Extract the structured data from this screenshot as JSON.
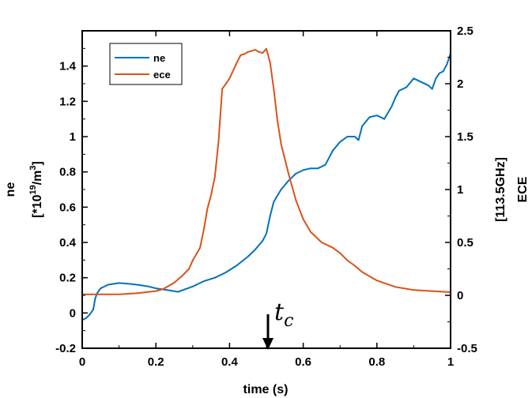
{
  "chart_data": {
    "type": "line",
    "xlabel": "time (s)",
    "ylabel_left": {
      "line1": "ne",
      "line2_prefix": "[*10",
      "line2_sup1": "19",
      "line2_mid": "/m",
      "line2_sup2": "3",
      "line2_suffix": "]"
    },
    "ylabel_right": {
      "line1": "[113.5GHz]",
      "line2": "ECE"
    },
    "xlim": [
      0,
      1
    ],
    "ylim_left": [
      -0.2,
      1.6
    ],
    "ylim_right": [
      -0.5,
      2.5
    ],
    "x_ticks": [
      "0",
      "0.2",
      "0.4",
      "0.6",
      "0.8",
      "1"
    ],
    "y_left_ticks": [
      "-0.2",
      "0",
      "0.2",
      "0.4",
      "0.6",
      "0.8",
      "1",
      "1.2",
      "1.4"
    ],
    "y_right_ticks": [
      "-0.5",
      "0",
      "0.5",
      "1",
      "1.5",
      "2",
      "2.5"
    ],
    "grid": false,
    "legend_position": "top-left",
    "annotation": {
      "text": "c",
      "prefix": "t",
      "x": 0.5
    },
    "series": [
      {
        "name": "ne",
        "axis": "left",
        "color": "#0072BD",
        "x": [
          0.0,
          0.01,
          0.02,
          0.03,
          0.035,
          0.04,
          0.05,
          0.07,
          0.1,
          0.13,
          0.15,
          0.18,
          0.2,
          0.23,
          0.26,
          0.3,
          0.33,
          0.36,
          0.39,
          0.42,
          0.45,
          0.47,
          0.49,
          0.5,
          0.51,
          0.52,
          0.54,
          0.56,
          0.58,
          0.6,
          0.62,
          0.64,
          0.66,
          0.68,
          0.7,
          0.72,
          0.74,
          0.75,
          0.76,
          0.78,
          0.8,
          0.81,
          0.82,
          0.84,
          0.85,
          0.86,
          0.88,
          0.9,
          0.92,
          0.94,
          0.95,
          0.96,
          0.97,
          0.98,
          0.99,
          1.0
        ],
        "values": [
          -0.04,
          -0.03,
          -0.01,
          0.02,
          0.08,
          0.11,
          0.14,
          0.16,
          0.17,
          0.165,
          0.16,
          0.15,
          0.14,
          0.13,
          0.12,
          0.15,
          0.18,
          0.2,
          0.23,
          0.27,
          0.32,
          0.36,
          0.41,
          0.45,
          0.55,
          0.63,
          0.7,
          0.75,
          0.79,
          0.81,
          0.82,
          0.82,
          0.84,
          0.92,
          0.97,
          1.0,
          1.0,
          0.98,
          1.06,
          1.11,
          1.12,
          1.11,
          1.1,
          1.17,
          1.22,
          1.26,
          1.28,
          1.33,
          1.31,
          1.29,
          1.27,
          1.33,
          1.36,
          1.37,
          1.41,
          1.47
        ]
      },
      {
        "name": "ece",
        "axis": "right",
        "color": "#D95319",
        "x": [
          0.0,
          0.05,
          0.1,
          0.15,
          0.2,
          0.22,
          0.25,
          0.27,
          0.29,
          0.3,
          0.32,
          0.33,
          0.34,
          0.35,
          0.36,
          0.37,
          0.38,
          0.4,
          0.42,
          0.43,
          0.44,
          0.45,
          0.47,
          0.48,
          0.49,
          0.5,
          0.51,
          0.52,
          0.53,
          0.54,
          0.56,
          0.58,
          0.6,
          0.62,
          0.65,
          0.68,
          0.7,
          0.72,
          0.74,
          0.76,
          0.8,
          0.85,
          0.9,
          0.95,
          1.0
        ],
        "values": [
          0.01,
          0.01,
          0.01,
          0.02,
          0.04,
          0.06,
          0.12,
          0.18,
          0.25,
          0.33,
          0.45,
          0.62,
          0.82,
          0.95,
          1.12,
          1.45,
          1.95,
          2.05,
          2.2,
          2.27,
          2.28,
          2.3,
          2.32,
          2.3,
          2.29,
          2.33,
          2.2,
          1.95,
          1.65,
          1.43,
          1.15,
          0.9,
          0.72,
          0.6,
          0.5,
          0.45,
          0.4,
          0.33,
          0.28,
          0.22,
          0.14,
          0.08,
          0.05,
          0.04,
          0.03
        ]
      }
    ]
  }
}
